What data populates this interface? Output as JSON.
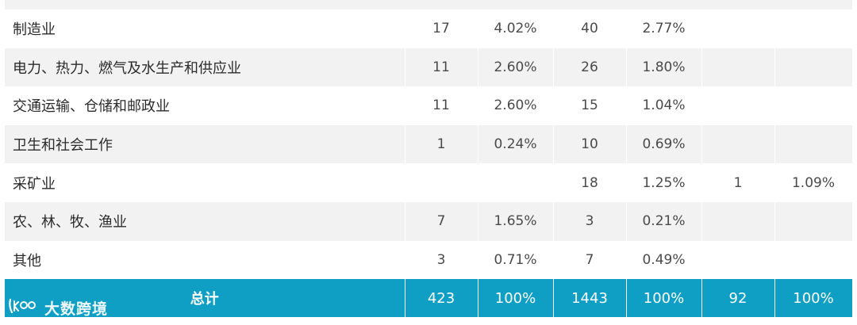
{
  "table": {
    "rows": [
      {
        "name": "制造业",
        "c1": "17",
        "p1": "4.02%",
        "c2": "40",
        "p2": "2.77%",
        "c3": "",
        "p3": ""
      },
      {
        "name": "电力、热力、燃气及水生产和供应业",
        "c1": "11",
        "p1": "2.60%",
        "c2": "26",
        "p2": "1.80%",
        "c3": "",
        "p3": ""
      },
      {
        "name": "交通运输、仓储和邮政业",
        "c1": "11",
        "p1": "2.60%",
        "c2": "15",
        "p2": "1.04%",
        "c3": "",
        "p3": ""
      },
      {
        "name": "卫生和社会工作",
        "c1": "1",
        "p1": "0.24%",
        "c2": "10",
        "p2": "0.69%",
        "c3": "",
        "p3": ""
      },
      {
        "name": "采矿业",
        "c1": "",
        "p1": "",
        "c2": "18",
        "p2": "1.25%",
        "c3": "1",
        "p3": "1.09%"
      },
      {
        "name": "农、林、牧、渔业",
        "c1": "7",
        "p1": "1.65%",
        "c2": "3",
        "p2": "0.21%",
        "c3": "",
        "p3": ""
      },
      {
        "name": "其他",
        "c1": "3",
        "p1": "0.71%",
        "c2": "7",
        "p2": "0.49%",
        "c3": "",
        "p3": ""
      }
    ],
    "total": {
      "name": "总计",
      "c1": "423",
      "p1": "100%",
      "c2": "1443",
      "p2": "100%",
      "c3": "92",
      "p3": "100%"
    }
  },
  "watermark": {
    "text": "大数跨境",
    "icon": "brand-logo-icon"
  },
  "colors": {
    "total_row_bg": "#0f9fc5",
    "stripe_bg": "#f2f2f3",
    "text": "#2b2b2b"
  }
}
